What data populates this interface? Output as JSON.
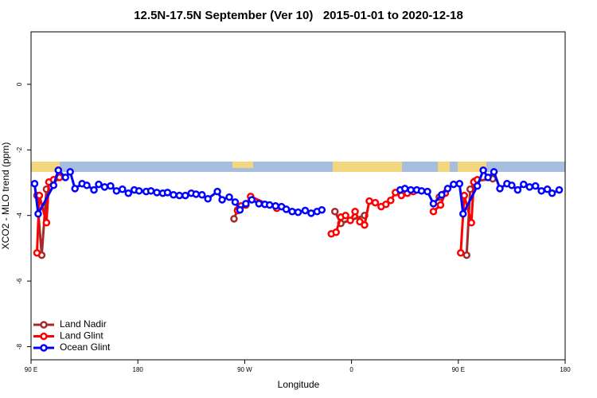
{
  "chart_data": {
    "type": "line",
    "title": "12.5N-17.5N September (Ver 10)   2015-01-01 to 2020-12-18",
    "x_label": "Longitude",
    "y_label": "XCO2 - MLO trend (ppm)",
    "xlim": [
      90,
      540
    ],
    "ylim": [
      -8.4,
      1.6
    ],
    "xticks": [
      {
        "value": 90,
        "label": "90 E"
      },
      180,
      {
        "value": 270,
        "label": "90 W"
      },
      {
        "value": 360,
        "label": "0"
      },
      {
        "value": 450,
        "label": "90 E"
      },
      {
        "value": 540,
        "label": "180"
      }
    ],
    "yticks": [
      0,
      -2,
      -4,
      -6,
      -8
    ],
    "legend": "bottom-left",
    "series": [
      {
        "name": "Land Nadir",
        "color": "#a52a2a",
        "x": [
          95,
          99,
          103,
          107,
          113,
          190,
          261,
          264,
          300,
          346,
          351,
          371,
          400,
          434,
          445,
          457,
          460,
          464,
          479
        ],
        "values": [
          -3.39,
          -5.21,
          -3.2,
          -2.98,
          -2.84,
          null,
          -4.1,
          -3.83,
          null,
          -3.88,
          -4.24,
          -4.0,
          null,
          -3.44,
          null,
          -5.21,
          -3.2,
          -2.95,
          -2.88
        ]
      },
      {
        "name": "Land Glint",
        "color": "#ff0000",
        "x": [
          95,
          97,
          103,
          105,
          109,
          114,
          190,
          264,
          267,
          271,
          275,
          297,
          320,
          343,
          347,
          351,
          355,
          359,
          363,
          367,
          371,
          375,
          380,
          385,
          389,
          393,
          397,
          402,
          407,
          412,
          420,
          429,
          435,
          439,
          445,
          452,
          455,
          461,
          463,
          466
        ],
        "values": [
          -5.14,
          -3.39,
          -4.22,
          -2.98,
          -2.91,
          -2.84,
          null,
          -3.85,
          -3.71,
          -3.68,
          -3.42,
          -3.78,
          null,
          -4.56,
          -4.51,
          -4.05,
          -4.0,
          -4.15,
          -3.88,
          -4.19,
          -4.29,
          -3.56,
          -3.61,
          -3.73,
          -3.66,
          -3.54,
          -3.3,
          -3.39,
          -3.32,
          -3.27,
          null,
          -3.88,
          -3.68,
          -3.32,
          null,
          -5.14,
          -3.39,
          -4.22,
          -2.98,
          -2.91
        ]
      },
      {
        "name": "Ocean Glint",
        "color": "#0000ff",
        "x": [
          93,
          96,
          109,
          113,
          119,
          123,
          127,
          133,
          137,
          143,
          147,
          152,
          157,
          162,
          167,
          172,
          177,
          181,
          187,
          191,
          196,
          201,
          205,
          210,
          215,
          220,
          225,
          229,
          234,
          239,
          247,
          251,
          257,
          262,
          266,
          271,
          276,
          282,
          287,
          291,
          296,
          301,
          305,
          310,
          315,
          321,
          326,
          331,
          335,
          368,
          401,
          405,
          410,
          415,
          419,
          424,
          429,
          436,
          441,
          446,
          451,
          454,
          466,
          471,
          475,
          480,
          485,
          491,
          495,
          500,
          505,
          510,
          515,
          520,
          525,
          529,
          535
        ],
        "values": [
          -3.03,
          -3.95,
          -3.08,
          -2.62,
          -2.84,
          -2.67,
          -3.18,
          -3.03,
          -3.08,
          -3.22,
          -3.05,
          -3.13,
          -3.1,
          -3.25,
          -3.2,
          -3.32,
          -3.22,
          -3.25,
          -3.27,
          -3.25,
          -3.3,
          -3.32,
          -3.3,
          -3.37,
          -3.39,
          -3.39,
          -3.32,
          -3.35,
          -3.37,
          -3.49,
          -3.27,
          -3.52,
          -3.44,
          -3.59,
          -3.83,
          -3.64,
          -3.52,
          -3.64,
          -3.66,
          -3.68,
          -3.71,
          -3.73,
          -3.81,
          -3.88,
          -3.9,
          -3.85,
          -3.93,
          -3.88,
          -3.83,
          null,
          -3.22,
          -3.18,
          -3.22,
          -3.22,
          -3.25,
          -3.27,
          -3.64,
          -3.37,
          -3.18,
          -3.05,
          -3.03,
          -3.95,
          -3.1,
          -2.62,
          -2.84,
          -2.67,
          -3.18,
          -3.03,
          -3.08,
          -3.22,
          -3.05,
          -3.13,
          -3.1,
          -3.25,
          -3.2,
          -3.32,
          -3.22
        ]
      }
    ]
  }
}
